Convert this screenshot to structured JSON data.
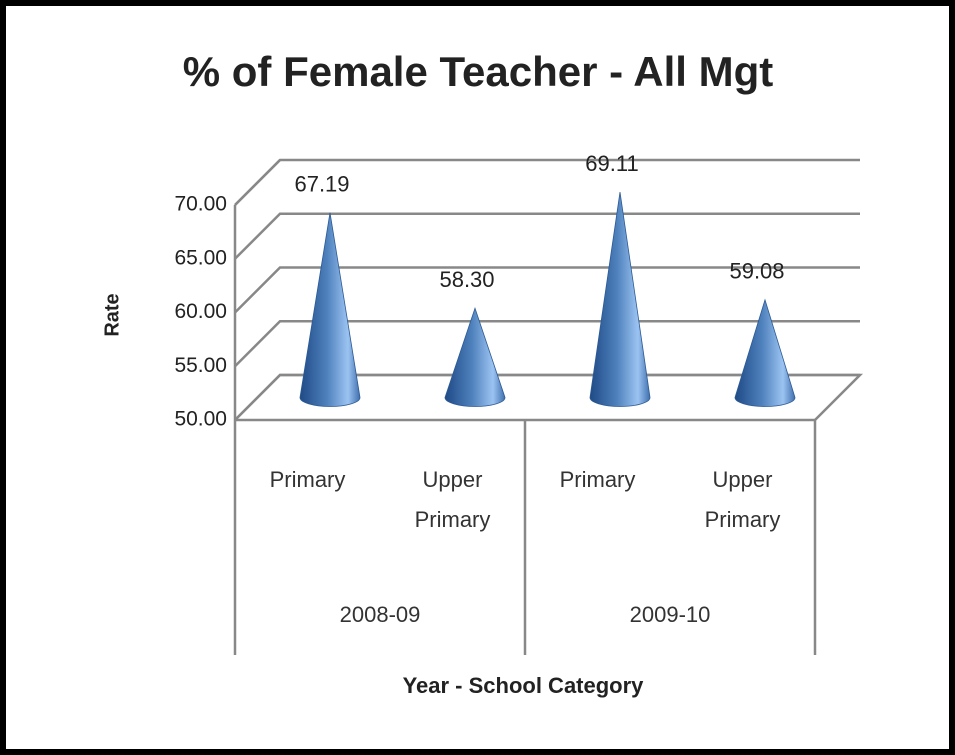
{
  "chart_data": {
    "type": "cone3d",
    "title": "% of Female Teacher - All Mgt",
    "categories": [
      "Primary",
      "Upper Primary",
      "Primary",
      "Upper Primary"
    ],
    "groups": [
      "2008-09",
      "2009-10"
    ],
    "values": [
      67.19,
      58.3,
      69.11,
      59.08
    ],
    "value_labels": [
      "67.19",
      "58.30",
      "69.11",
      "59.08"
    ],
    "color": "#4f81bd",
    "ylim": [
      50,
      70
    ],
    "yticks": [
      {
        "value": 50,
        "label": "50.00"
      },
      {
        "value": 55,
        "label": "55.00"
      },
      {
        "value": 60,
        "label": "60.00"
      },
      {
        "value": 65,
        "label": "65.00"
      },
      {
        "value": 70,
        "label": "70.00"
      }
    ],
    "y_label": "Rate",
    "x_label": "Year - School Category",
    "grid": true
  }
}
